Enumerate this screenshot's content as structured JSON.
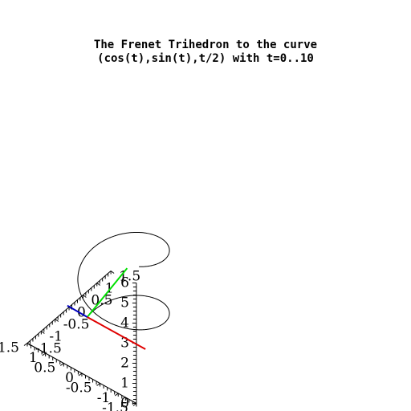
{
  "chart_data": {
    "type": "line",
    "title_lines": [
      "The Frenet Trihedron to the curve",
      "(cos(t),sin(t),t/2) with t=0..10"
    ],
    "curve": {
      "x_expr": "cos(t)",
      "y_expr": "sin(t)",
      "z_expr": "t/2",
      "t_range": [
        0,
        10
      ],
      "color": "#000000"
    },
    "trihedron": {
      "tangent_color": "#00e000",
      "normal_color": "#e00000",
      "binormal_color": "#0000c0"
    },
    "axes": {
      "x_ticks": [
        "-1.5",
        "-1",
        "-0.5",
        "0",
        "0.5",
        "1",
        "1.5"
      ],
      "y_ticks": [
        "-1.5",
        "-1",
        "-0.5",
        "0",
        "0.5",
        "1",
        "1.5"
      ],
      "z_ticks": [
        "0",
        "1",
        "2",
        "3",
        "4",
        "5",
        "6"
      ],
      "x_range": [
        -1.5,
        1.5
      ],
      "y_range": [
        -1.5,
        1.5
      ],
      "z_range": [
        0,
        6
      ]
    }
  }
}
